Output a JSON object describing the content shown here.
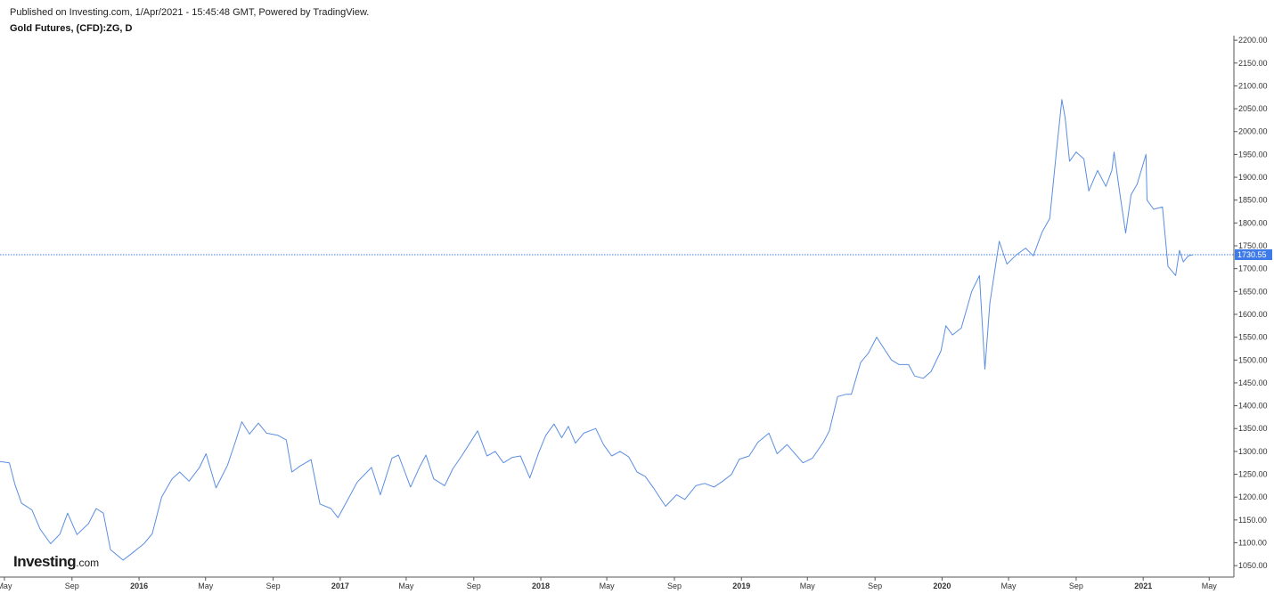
{
  "header": {
    "published": "Published on Investing.com, 1/Apr/2021 - 15:45:48 GMT, Powered by TradingView.",
    "title": "Gold Futures, (CFD):ZG, D"
  },
  "logo": {
    "main": "Investing",
    "suffix": ".com"
  },
  "colors": {
    "line": "#5b8ee0",
    "last_line": "#3f7be8",
    "badge": "#3f7be8",
    "axis": "#555555"
  },
  "chart_data": {
    "type": "line",
    "title": "Gold Futures, (CFD):ZG, D",
    "ylim": [
      1025,
      2210
    ],
    "xlim": [
      "2015-04-23",
      "2021-06-15"
    ],
    "y_ticks": [
      "1050.00",
      "1100.00",
      "1150.00",
      "1200.00",
      "1250.00",
      "1300.00",
      "1350.00",
      "1400.00",
      "1450.00",
      "1500.00",
      "1550.00",
      "1600.00",
      "1650.00",
      "1700.00",
      "1750.00",
      "1800.00",
      "1850.00",
      "1900.00",
      "1950.00",
      "2000.00",
      "2050.00",
      "2100.00",
      "2150.00",
      "2200.00"
    ],
    "x_ticks": [
      {
        "date": "2015-05-01",
        "label": "May",
        "bold": false
      },
      {
        "date": "2015-09-01",
        "label": "Sep",
        "bold": false
      },
      {
        "date": "2016-01-01",
        "label": "2016",
        "bold": true
      },
      {
        "date": "2016-05-01",
        "label": "May",
        "bold": false
      },
      {
        "date": "2016-09-01",
        "label": "Sep",
        "bold": false
      },
      {
        "date": "2017-01-01",
        "label": "2017",
        "bold": true
      },
      {
        "date": "2017-05-01",
        "label": "May",
        "bold": false
      },
      {
        "date": "2017-09-01",
        "label": "Sep",
        "bold": false
      },
      {
        "date": "2018-01-01",
        "label": "2018",
        "bold": true
      },
      {
        "date": "2018-05-01",
        "label": "May",
        "bold": false
      },
      {
        "date": "2018-09-01",
        "label": "Sep",
        "bold": false
      },
      {
        "date": "2019-01-01",
        "label": "2019",
        "bold": true
      },
      {
        "date": "2019-05-01",
        "label": "May",
        "bold": false
      },
      {
        "date": "2019-09-01",
        "label": "Sep",
        "bold": false
      },
      {
        "date": "2020-01-01",
        "label": "2020",
        "bold": true
      },
      {
        "date": "2020-05-01",
        "label": "May",
        "bold": false
      },
      {
        "date": "2020-09-01",
        "label": "Sep",
        "bold": false
      },
      {
        "date": "2021-01-01",
        "label": "2021",
        "bold": true
      },
      {
        "date": "2021-05-01",
        "label": "May",
        "bold": false
      }
    ],
    "last_value": 1730.55,
    "last_label": "1730.55",
    "series": [
      {
        "x": [
          "2015-04-23",
          "2015-05-10",
          "2015-05-20",
          "2015-06-01",
          "2015-06-20",
          "2015-07-05",
          "2015-07-24",
          "2015-08-10",
          "2015-08-24",
          "2015-09-10",
          "2015-10-01",
          "2015-10-15",
          "2015-10-28",
          "2015-11-10",
          "2015-11-25",
          "2015-12-03",
          "2015-12-17",
          "2016-01-10",
          "2016-01-25",
          "2016-02-11",
          "2016-03-01",
          "2016-03-15",
          "2016-04-01",
          "2016-04-20",
          "2016-05-02",
          "2016-05-20",
          "2016-06-10",
          "2016-06-24",
          "2016-07-06",
          "2016-07-20",
          "2016-08-05",
          "2016-08-20",
          "2016-09-10",
          "2016-09-25",
          "2016-10-05",
          "2016-10-20",
          "2016-11-09",
          "2016-11-25",
          "2016-12-15",
          "2016-12-28",
          "2017-01-15",
          "2017-02-01",
          "2017-02-27",
          "2017-03-15",
          "2017-04-05",
          "2017-04-17",
          "2017-05-09",
          "2017-05-25",
          "2017-06-06",
          "2017-06-20",
          "2017-07-10",
          "2017-07-25",
          "2017-08-10",
          "2017-09-08",
          "2017-09-25",
          "2017-10-10",
          "2017-10-25",
          "2017-11-10",
          "2017-11-25",
          "2017-12-12",
          "2017-12-28",
          "2018-01-10",
          "2018-01-25",
          "2018-02-08",
          "2018-02-20",
          "2018-03-05",
          "2018-03-20",
          "2018-04-11",
          "2018-04-25",
          "2018-05-10",
          "2018-05-25",
          "2018-06-10",
          "2018-06-25",
          "2018-07-10",
          "2018-07-25",
          "2018-08-16",
          "2018-09-05",
          "2018-09-20",
          "2018-10-10",
          "2018-10-26",
          "2018-11-12",
          "2018-11-28",
          "2018-12-14",
          "2018-12-28",
          "2019-01-15",
          "2019-01-31",
          "2019-02-20",
          "2019-03-07",
          "2019-03-25",
          "2019-04-23",
          "2019-05-10",
          "2019-05-30",
          "2019-06-10",
          "2019-06-25",
          "2019-07-10",
          "2019-07-20",
          "2019-08-06",
          "2019-08-20",
          "2019-09-04",
          "2019-09-20",
          "2019-10-01",
          "2019-10-15",
          "2019-11-01",
          "2019-11-12",
          "2019-11-28",
          "2019-12-12",
          "2019-12-30",
          "2020-01-08",
          "2020-01-20",
          "2020-02-05",
          "2020-02-24",
          "2020-03-09",
          "2020-03-19",
          "2020-03-28",
          "2020-04-14",
          "2020-04-28",
          "2020-05-15",
          "2020-06-01",
          "2020-06-15",
          "2020-07-01",
          "2020-07-15",
          "2020-07-27",
          "2020-08-06",
          "2020-08-12",
          "2020-08-20",
          "2020-09-01",
          "2020-09-15",
          "2020-09-24",
          "2020-10-10",
          "2020-10-25",
          "2020-11-05",
          "2020-11-09",
          "2020-11-20",
          "2020-11-30",
          "2020-12-10",
          "2020-12-21",
          "2021-01-06",
          "2021-01-08",
          "2021-01-20",
          "2021-02-05",
          "2021-02-15",
          "2021-03-01",
          "2021-03-08",
          "2021-03-15",
          "2021-03-24",
          "2021-03-31"
        ],
        "y": [
          1278,
          1275,
          1228,
          1187,
          1172,
          1130,
          1098,
          1119,
          1165,
          1118,
          1142,
          1175,
          1165,
          1085,
          1070,
          1062,
          1075,
          1098,
          1120,
          1200,
          1240,
          1255,
          1235,
          1265,
          1295,
          1220,
          1270,
          1320,
          1365,
          1338,
          1362,
          1340,
          1335,
          1325,
          1255,
          1268,
          1282,
          1185,
          1175,
          1155,
          1195,
          1233,
          1265,
          1205,
          1285,
          1292,
          1222,
          1265,
          1292,
          1240,
          1225,
          1262,
          1290,
          1345,
          1290,
          1300,
          1275,
          1287,
          1290,
          1242,
          1297,
          1335,
          1360,
          1330,
          1355,
          1318,
          1340,
          1350,
          1315,
          1290,
          1300,
          1288,
          1255,
          1245,
          1220,
          1180,
          1205,
          1195,
          1225,
          1230,
          1222,
          1235,
          1250,
          1283,
          1290,
          1320,
          1340,
          1295,
          1315,
          1275,
          1285,
          1320,
          1345,
          1420,
          1425,
          1425,
          1495,
          1515,
          1550,
          1520,
          1500,
          1490,
          1490,
          1465,
          1460,
          1475,
          1520,
          1575,
          1555,
          1570,
          1650,
          1685,
          1480,
          1625,
          1760,
          1710,
          1730,
          1745,
          1728,
          1780,
          1810,
          1955,
          2070,
          2030,
          1935,
          1955,
          1940,
          1870,
          1915,
          1880,
          1915,
          1955,
          1860,
          1778,
          1862,
          1885,
          1950,
          1850,
          1830,
          1835,
          1705,
          1685,
          1740,
          1715,
          1728,
          1730
        ]
      }
    ]
  }
}
